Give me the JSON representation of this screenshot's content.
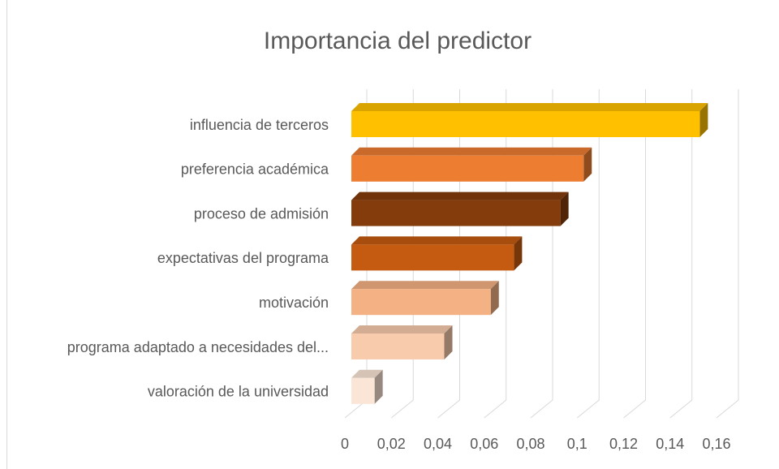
{
  "chart_data": {
    "type": "bar3d-horizontal",
    "title": "Importancia del predictor",
    "categories": [
      "influencia de terceros",
      "preferencia académica",
      "proceso de admisión",
      "expectativas del programa",
      "motivación",
      "programa adaptado a necesidades del...",
      "valoración de la universidad"
    ],
    "values": [
      0.15,
      0.1,
      0.09,
      0.07,
      0.06,
      0.04,
      0.01
    ],
    "colors": [
      "#FFC000",
      "#ED7D31",
      "#843C0C",
      "#C55A11",
      "#F4B183",
      "#F8CBAD",
      "#FBE5D6"
    ],
    "xlim": [
      0,
      0.16
    ],
    "xticks": [
      0,
      {
        "value": 0.02,
        "label": "0,02"
      },
      {
        "value": 0.04,
        "label": "0,04"
      },
      {
        "value": 0.06,
        "label": "0,06"
      },
      {
        "value": 0.08,
        "label": "0,08"
      },
      {
        "value": 0.1,
        "label": "0,1"
      },
      {
        "value": 0.12,
        "label": "0,12"
      },
      {
        "value": 0.14,
        "label": "0,14"
      },
      {
        "value": 0.16,
        "label": "0,16"
      }
    ],
    "grid": true
  }
}
